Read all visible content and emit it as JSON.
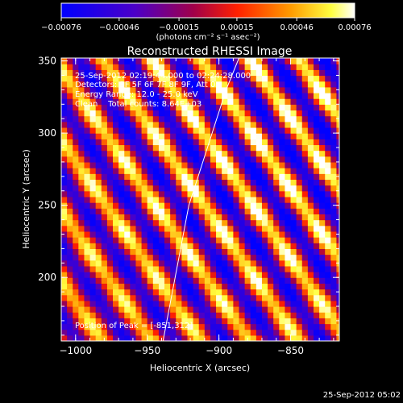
{
  "chart_data": {
    "type": "heatmap",
    "title": "Reconstructed RHESSI Image",
    "xlabel": "Heliocentric X (arcsec)",
    "ylabel": "Heliocentric Y (arcsec)",
    "xlim": [
      -1010,
      -816
    ],
    "ylim": [
      156,
      352
    ],
    "x_ticks": [
      -1000,
      -950,
      -900,
      -850
    ],
    "y_ticks": [
      200,
      250,
      300,
      350
    ],
    "colorbar": {
      "label": "(photons cm⁻² s⁻¹ asec⁻²)",
      "range": [
        -0.00076,
        0.00076
      ],
      "tick_values": [
        -0.00076,
        -0.00046,
        -0.00015,
        0.00015,
        0.00046,
        0.00076
      ],
      "tick_labels": [
        "−0.00076",
        "−0.00046",
        "−0.00015",
        "0.00015",
        "0.00046",
        "0.00076"
      ]
    },
    "annotations": {
      "time": "25-Sep-2012 02:19:44.000 to 02:24:28.000",
      "detectors": "Detectors: 3F 5F 6F 7F 8F 9F, Att 0",
      "energy": "Energy Range: 12.0 - 25.0 keV",
      "clean": "Clean    Total counts: 8.64E+03",
      "peak": "Position of Peak = [-851,312]"
    },
    "peak_position": [
      -851,
      312
    ],
    "pattern": {
      "angle_deg": 35,
      "period_arcsec": 28,
      "pixel_arcsec": 4
    },
    "limb_curve": [
      [
        -939,
        156
      ],
      [
        -921,
        250
      ],
      [
        -895,
        330
      ],
      [
        -886,
        352
      ]
    ]
  },
  "footer": {
    "timestamp": "25-Sep-2012 05:02"
  }
}
